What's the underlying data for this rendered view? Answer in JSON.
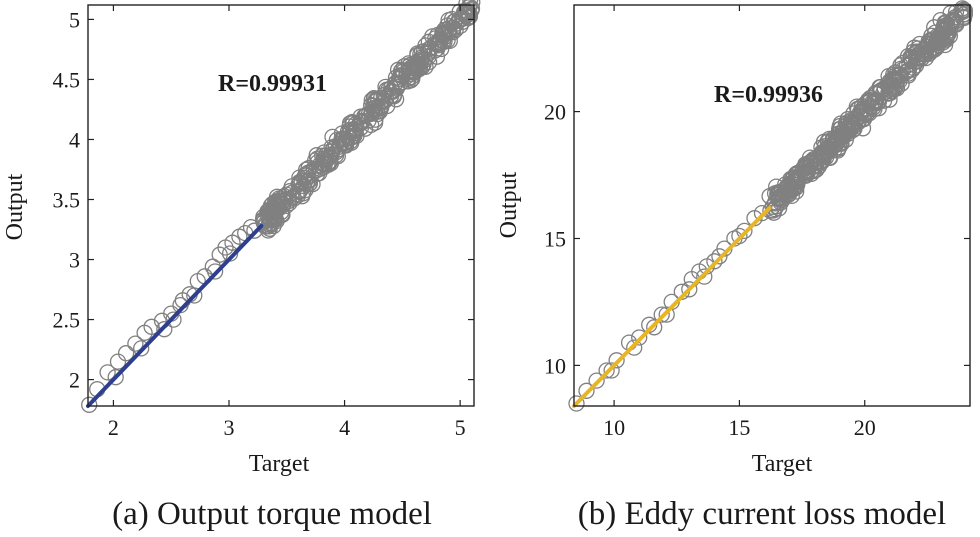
{
  "chart_data": [
    {
      "type": "scatter",
      "caption": "(a) Output torque model",
      "annotation": "R=0.99931",
      "xlabel": "Target",
      "ylabel": "Output",
      "xlim": [
        1.78,
        5.12
      ],
      "ylim": [
        1.78,
        5.12
      ],
      "xticks": [
        {
          "v": 2,
          "t": "2"
        },
        {
          "v": 3,
          "t": "3"
        },
        {
          "v": 4,
          "t": "4"
        },
        {
          "v": 5,
          "t": "5"
        }
      ],
      "yticks": [
        {
          "v": 2,
          "t": "2"
        },
        {
          "v": 2.5,
          "t": "2.5"
        },
        {
          "v": 3,
          "t": "3"
        },
        {
          "v": 3.5,
          "t": "3.5"
        },
        {
          "v": 4,
          "t": "4"
        },
        {
          "v": 4.5,
          "t": "4.5"
        },
        {
          "v": 5,
          "t": "5"
        }
      ],
      "fit_line": {
        "from": [
          1.78,
          1.78
        ],
        "to": [
          3.28,
          3.28
        ],
        "color": "#2e3f8f"
      },
      "marker_color": "#808080",
      "sparse_points": [
        [
          1.79,
          1.79
        ],
        [
          1.86,
          1.92
        ],
        [
          1.95,
          2.06
        ],
        [
          2.04,
          2.15
        ],
        [
          2.11,
          2.22
        ],
        [
          2.19,
          2.3
        ],
        [
          2.27,
          2.39
        ],
        [
          2.33,
          2.44
        ],
        [
          2.42,
          2.49
        ],
        [
          2.5,
          2.55
        ],
        [
          2.58,
          2.62
        ],
        [
          2.66,
          2.71
        ],
        [
          2.73,
          2.82
        ],
        [
          2.79,
          2.86
        ],
        [
          2.86,
          2.94
        ],
        [
          2.92,
          3.04
        ],
        [
          2.97,
          3.1
        ],
        [
          3.03,
          3.14
        ],
        [
          3.09,
          3.19
        ],
        [
          3.14,
          3.22
        ],
        [
          3.19,
          3.27
        ],
        [
          2.7,
          2.7
        ],
        [
          2.6,
          2.66
        ],
        [
          2.44,
          2.42
        ],
        [
          2.24,
          2.26
        ],
        [
          2.02,
          2.02
        ],
        [
          2.88,
          2.9
        ],
        [
          3.01,
          3.05
        ],
        [
          2.52,
          2.5
        ],
        [
          3.22,
          3.24
        ]
      ],
      "dense_range": [
        3.28,
        5.11
      ],
      "dense_count": 380,
      "dense_spread": 0.045
    },
    {
      "type": "scatter",
      "caption": "(b) Eddy current loss model",
      "annotation": "R=0.99936",
      "xlabel": "Target",
      "ylabel": "Output",
      "xlim": [
        8.4,
        24.2
      ],
      "ylim": [
        8.4,
        24.2
      ],
      "xticks": [
        {
          "v": 10,
          "t": "10"
        },
        {
          "v": 15,
          "t": "15"
        },
        {
          "v": 20,
          "t": "20"
        }
      ],
      "yticks": [
        {
          "v": 10,
          "t": "10"
        },
        {
          "v": 15,
          "t": "15"
        },
        {
          "v": 20,
          "t": "20"
        }
      ],
      "fit_line": {
        "from": [
          8.4,
          8.4
        ],
        "to": [
          16.2,
          16.2
        ],
        "color": "#e8b524"
      },
      "marker_color": "#808080",
      "sparse_points": [
        [
          8.5,
          8.5
        ],
        [
          8.9,
          9.0
        ],
        [
          9.3,
          9.4
        ],
        [
          9.7,
          9.8
        ],
        [
          10.1,
          10.2
        ],
        [
          10.6,
          10.9
        ],
        [
          11.0,
          11.1
        ],
        [
          11.4,
          11.6
        ],
        [
          11.9,
          12.0
        ],
        [
          12.3,
          12.5
        ],
        [
          12.7,
          12.9
        ],
        [
          13.1,
          13.4
        ],
        [
          13.4,
          13.7
        ],
        [
          13.7,
          13.9
        ],
        [
          14.0,
          14.1
        ],
        [
          14.4,
          14.6
        ],
        [
          14.8,
          15.0
        ],
        [
          15.2,
          15.3
        ],
        [
          15.6,
          15.8
        ],
        [
          15.9,
          16.0
        ],
        [
          12.1,
          12.0
        ],
        [
          13.6,
          13.5
        ],
        [
          14.2,
          14.3
        ],
        [
          11.6,
          11.5
        ],
        [
          9.9,
          9.8
        ],
        [
          15.0,
          15.1
        ],
        [
          10.8,
          10.7
        ],
        [
          13.0,
          13.0
        ]
      ],
      "dense_range": [
        16.2,
        24.0
      ],
      "dense_count": 400,
      "dense_spread": 0.22
    }
  ]
}
